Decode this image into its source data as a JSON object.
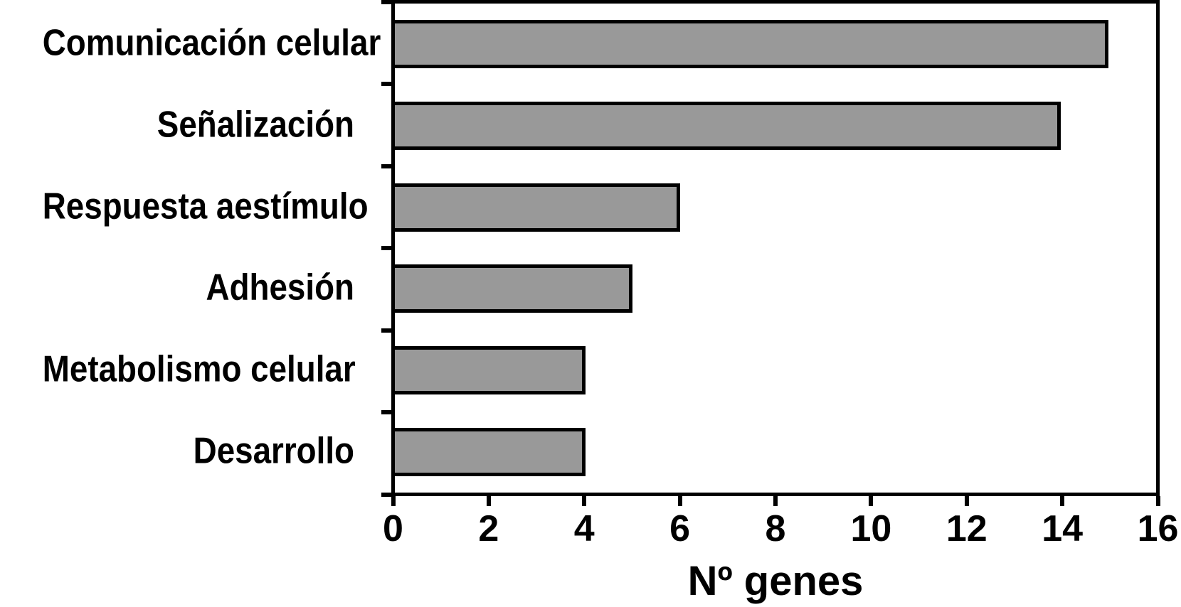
{
  "chart_data": {
    "type": "bar",
    "orientation": "horizontal",
    "title": "",
    "xlabel": "Nº genes",
    "ylabel": "",
    "categories": [
      "Comunicación celular",
      "Señalización",
      "Respuesta aestímulo",
      "Adhesión",
      "Metabolismo celular",
      "Desarrollo"
    ],
    "values": [
      15,
      14,
      6,
      5,
      4,
      4
    ],
    "xlim": [
      0,
      16
    ],
    "x_tick_values": [
      0,
      2,
      4,
      6,
      8,
      10,
      12,
      14,
      16
    ],
    "x_tick_labels": [
      "0",
      "2",
      "4",
      "6",
      "8",
      "10",
      "12",
      "14",
      "16"
    ],
    "grid": false,
    "legend": false,
    "bar_fill_color": "#999999",
    "bar_border_color": "#000000",
    "axis_color": "#000000",
    "background_color": "#ffffff"
  }
}
